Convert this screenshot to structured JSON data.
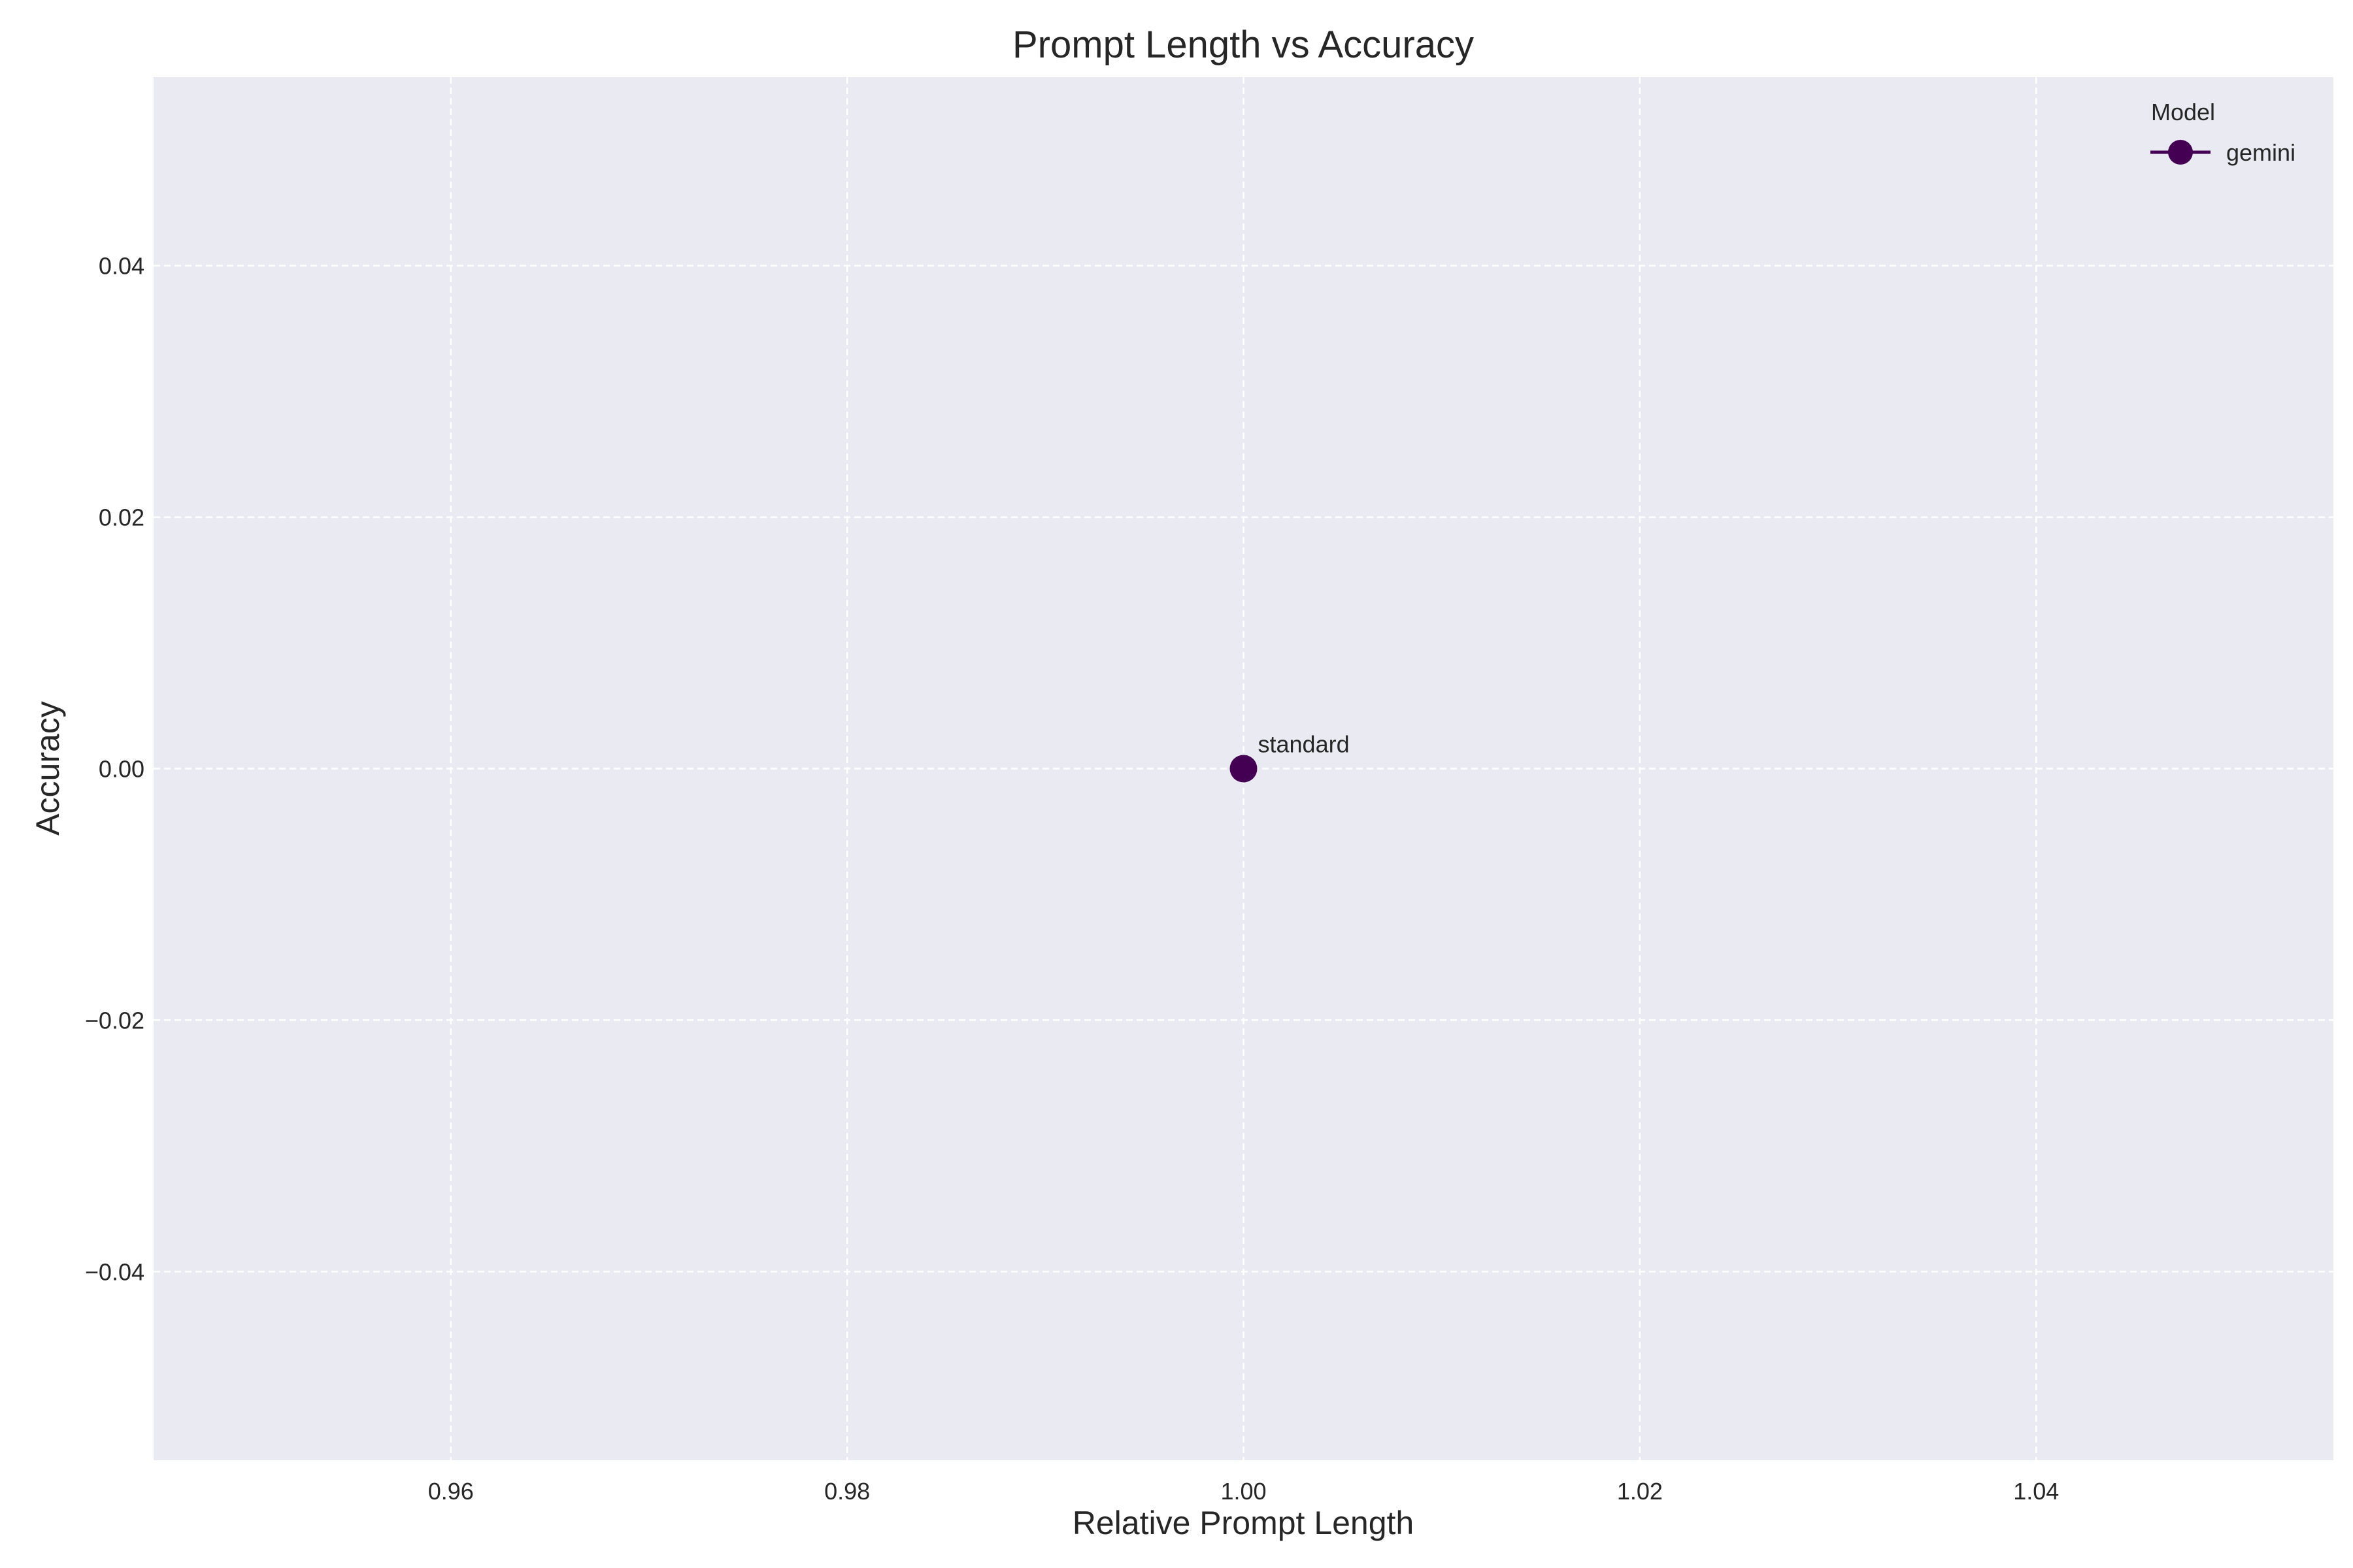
{
  "chart_data": {
    "type": "scatter",
    "title": "Prompt Length vs Accuracy",
    "xlabel": "Relative Prompt Length",
    "ylabel": "Accuracy",
    "xlim": [
      0.945,
      1.055
    ],
    "ylim": [
      -0.055,
      0.055
    ],
    "x_ticks": [
      0.96,
      0.98,
      1.0,
      1.02,
      1.04
    ],
    "x_tick_labels": [
      "0.96",
      "0.98",
      "1.00",
      "1.02",
      "1.04"
    ],
    "y_ticks": [
      -0.04,
      -0.02,
      0.0,
      0.02,
      0.04
    ],
    "y_tick_labels": [
      "−0.04",
      "−0.02",
      "0.00",
      "0.02",
      "0.04"
    ],
    "grid": true,
    "grid_style": "dashed",
    "background_color": "#eaeaf2",
    "legend": {
      "title": "Model",
      "placement": "top-right"
    },
    "series": [
      {
        "name": "gemini",
        "color": "#440154",
        "points": [
          {
            "x": 1.0,
            "y": 0.0,
            "label": "standard"
          }
        ]
      }
    ]
  }
}
